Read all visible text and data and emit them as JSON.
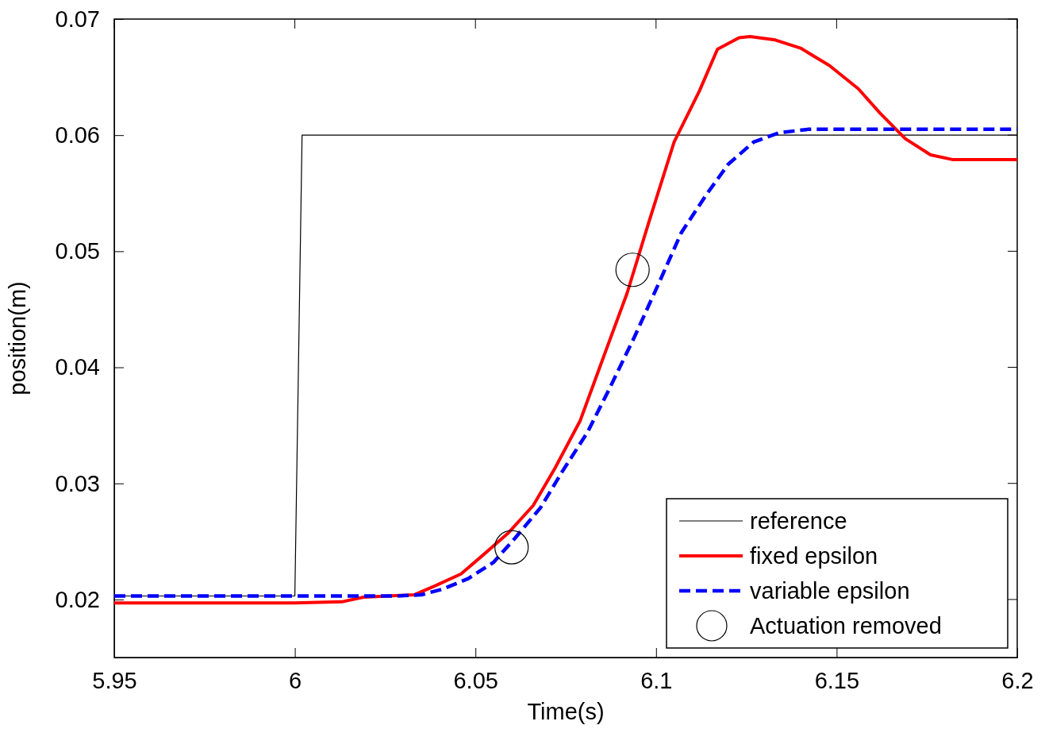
{
  "chart_data": {
    "type": "line",
    "xlabel": "Time(s)",
    "ylabel": "position(m)",
    "xlim": [
      5.95,
      6.2
    ],
    "ylim": [
      0.015,
      0.07
    ],
    "xticks": [
      5.95,
      6,
      6.05,
      6.1,
      6.15,
      6.2
    ],
    "yticks": [
      0.02,
      0.03,
      0.04,
      0.05,
      0.06,
      0.07
    ],
    "grid": false,
    "legend": "bottom right",
    "series": [
      {
        "name": "reference",
        "color": "#000000",
        "line_style": "solid",
        "x": [
          5.95,
          6.0,
          6.002,
          6.2
        ],
        "values": [
          0.0203,
          0.0203,
          0.06,
          0.06
        ]
      },
      {
        "name": "fixed epsilon",
        "color": "#ff0000",
        "line_style": "solid",
        "x": [
          5.95,
          6.0,
          6.013,
          6.019,
          6.033,
          6.039,
          6.046,
          6.052,
          6.059,
          6.066,
          6.072,
          6.079,
          6.085,
          6.092,
          6.098,
          6.105,
          6.112,
          6.117,
          6.123,
          6.126,
          6.133,
          6.14,
          6.148,
          6.156,
          6.162,
          6.169,
          6.176,
          6.182,
          6.193,
          6.2
        ],
        "values": [
          0.0197,
          0.0197,
          0.0198,
          0.0202,
          0.0204,
          0.0212,
          0.0222,
          0.0238,
          0.0257,
          0.0281,
          0.0313,
          0.0354,
          0.0405,
          0.0464,
          0.0525,
          0.0594,
          0.0638,
          0.0674,
          0.0684,
          0.0685,
          0.0682,
          0.0675,
          0.066,
          0.064,
          0.0619,
          0.0597,
          0.0583,
          0.0579,
          0.0579,
          0.0579
        ]
      },
      {
        "name": "variable epsilon",
        "color": "#0000ff",
        "line_style": "dashed",
        "x": [
          5.95,
          6.028,
          6.035,
          6.041,
          6.048,
          6.055,
          6.061,
          6.068,
          6.074,
          6.081,
          6.087,
          6.094,
          6.101,
          6.107,
          6.114,
          6.12,
          6.127,
          6.134,
          6.142,
          6.2
        ],
        "values": [
          0.0203,
          0.0203,
          0.0204,
          0.0209,
          0.0218,
          0.0232,
          0.0253,
          0.0279,
          0.031,
          0.0344,
          0.0381,
          0.0426,
          0.0474,
          0.0516,
          0.0549,
          0.0575,
          0.0594,
          0.0602,
          0.0605,
          0.0605
        ]
      },
      {
        "name": "Actuation removed",
        "type": "scatter",
        "marker": "circle",
        "color": "#000000",
        "x": [
          6.06,
          6.0935
        ],
        "values": [
          0.0245,
          0.0484
        ]
      }
    ]
  }
}
